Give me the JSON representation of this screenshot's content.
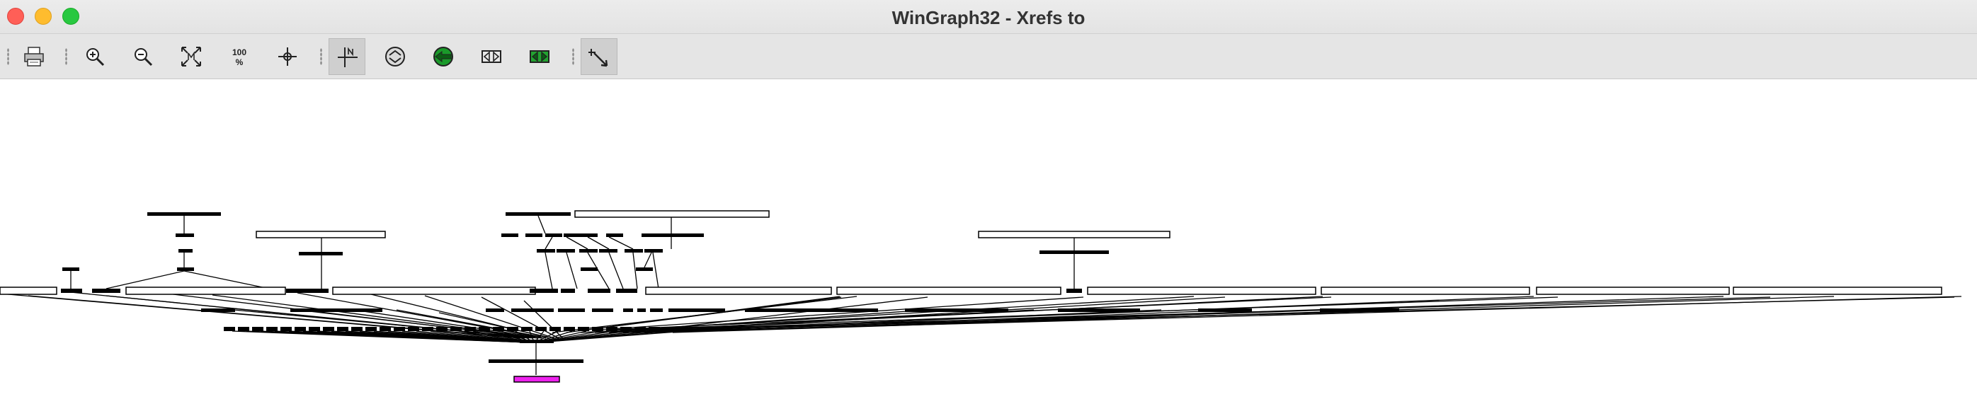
{
  "window": {
    "title": "WinGraph32 - Xrefs to"
  },
  "toolbar": {
    "buttons": [
      {
        "name": "print-button",
        "icon": "printer-icon"
      },
      {
        "name": "zoom-in-button",
        "icon": "zoom-in-icon"
      },
      {
        "name": "zoom-out-button",
        "icon": "zoom-out-icon"
      },
      {
        "name": "fit-window-button",
        "icon": "fit-window-icon"
      },
      {
        "name": "zoom-100-button",
        "icon": "zoom-100-icon",
        "label": "100"
      },
      {
        "name": "center-button",
        "icon": "crosshair-icon"
      },
      {
        "name": "navigate-button",
        "icon": "north-arrow-icon",
        "active": true
      },
      {
        "name": "circular-layout-button",
        "icon": "circle-arrows-icon"
      },
      {
        "name": "circular-layout-green-button",
        "icon": "circle-arrows-green-icon"
      },
      {
        "name": "tree-layout-button",
        "icon": "tree-arrows-icon"
      },
      {
        "name": "tree-layout-green-button",
        "icon": "tree-arrows-green-icon"
      },
      {
        "name": "select-tool-button",
        "icon": "select-arrow-icon",
        "active": true
      }
    ]
  },
  "colors": {
    "root_node": "#ee22ee",
    "node_border": "#000000",
    "edge": "#000000"
  }
}
